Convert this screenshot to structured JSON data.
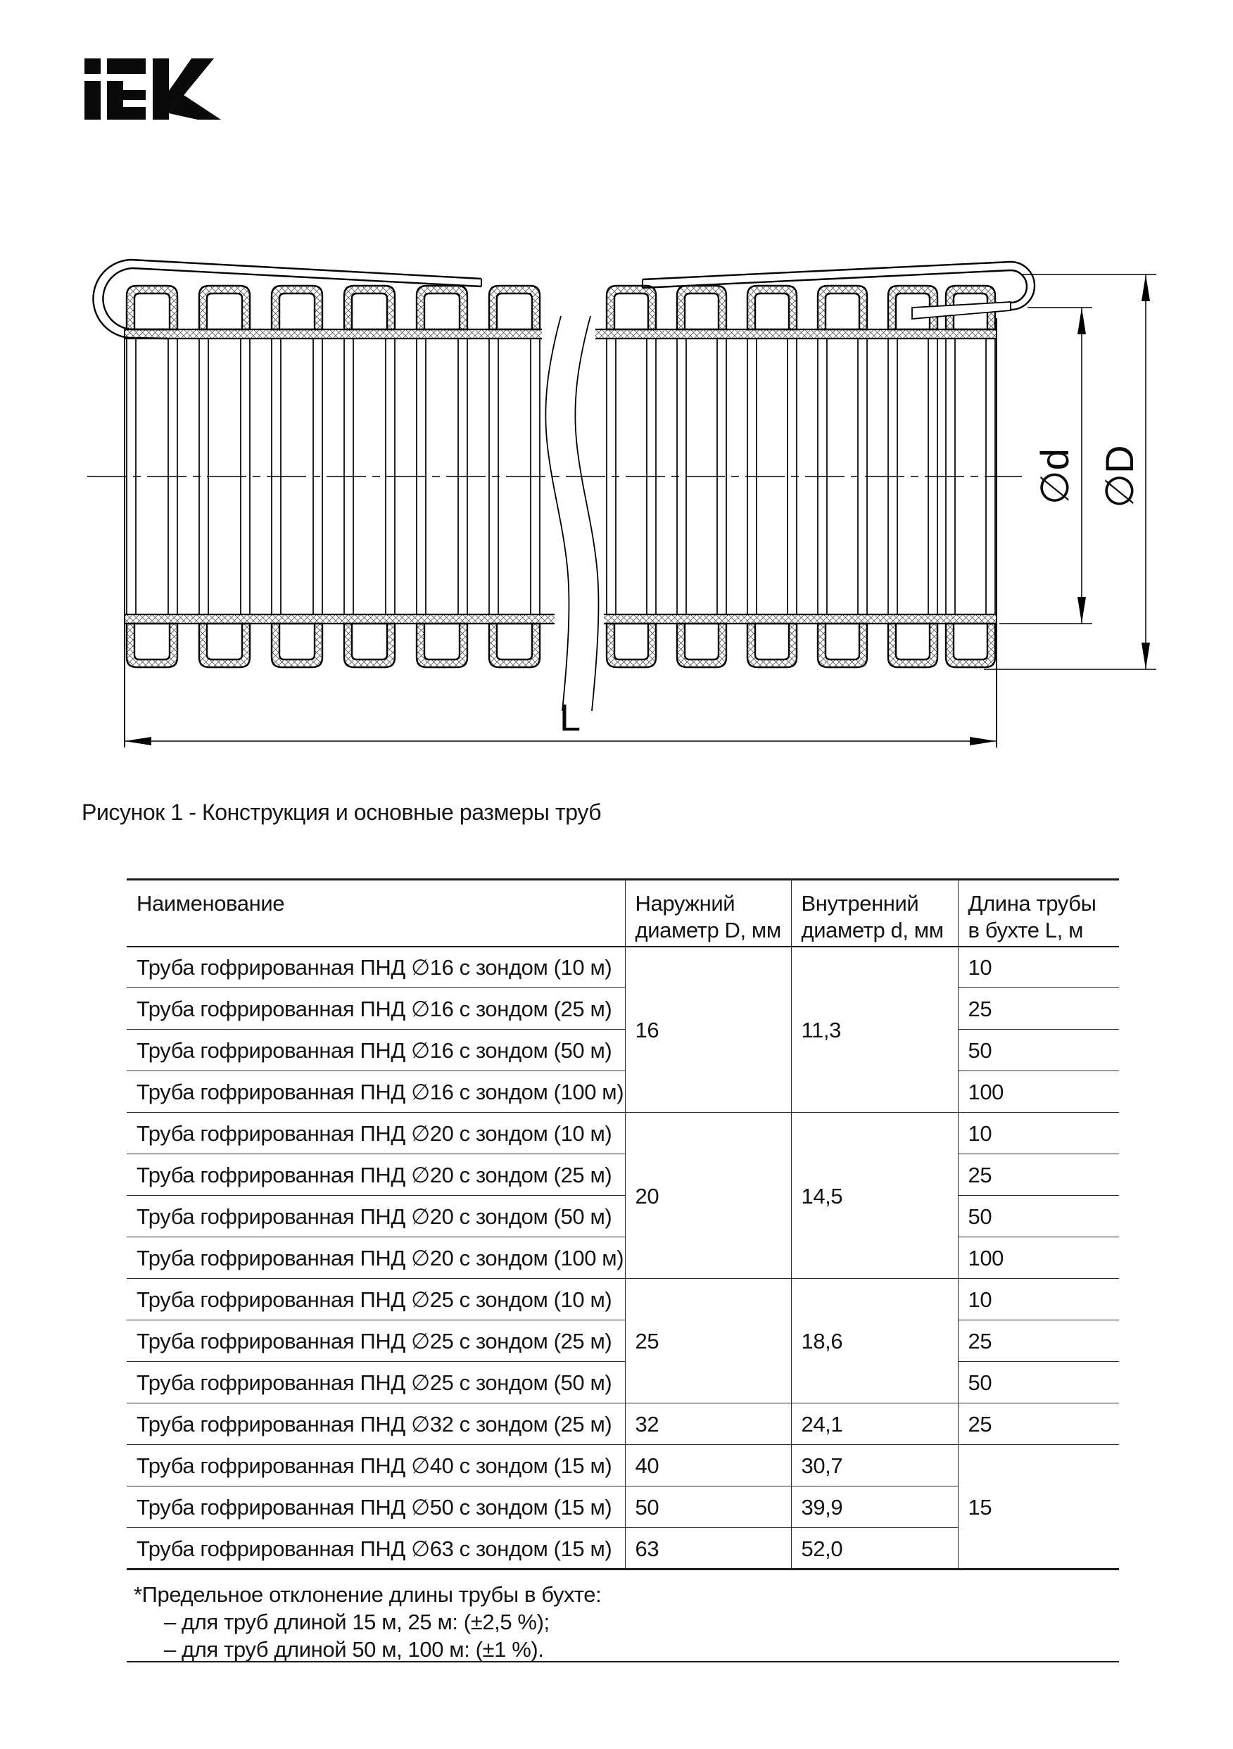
{
  "logo": {
    "brand": "IEK"
  },
  "figure": {
    "caption": "Рисунок 1 - Конструкция и основные размеры труб",
    "dim_inner_label": "∅d",
    "dim_outer_label": "∅D",
    "dim_length_label": "L"
  },
  "table": {
    "headers": {
      "name": "Наименование",
      "outer": [
        "Наружний",
        "диаметр D, мм"
      ],
      "inner": [
        "Внутренний",
        "диаметр d, мм"
      ],
      "length": [
        "Длина трубы",
        "в бухте L, м"
      ]
    },
    "rows": [
      {
        "name": "Труба гофрированная ПНД ∅16 с зондом (10 м)",
        "D": "16",
        "d": "11,3",
        "L": "10"
      },
      {
        "name": "Труба гофрированная ПНД ∅16 с зондом (25 м)",
        "L": "25"
      },
      {
        "name": "Труба гофрированная ПНД ∅16 с зондом (50 м)",
        "L": "50"
      },
      {
        "name": "Труба гофрированная ПНД ∅16 с зондом (100 м)",
        "L": "100"
      },
      {
        "name": "Труба гофрированная ПНД ∅20 с зондом (10 м)",
        "D": "20",
        "d": "14,5",
        "L": "10"
      },
      {
        "name": "Труба гофрированная ПНД ∅20 с зондом (25 м)",
        "L": "25"
      },
      {
        "name": "Труба гофрированная ПНД ∅20 с зондом (50 м)",
        "L": "50"
      },
      {
        "name": "Труба гофрированная ПНД ∅20 с зондом (100 м)",
        "L": "100"
      },
      {
        "name": "Труба гофрированная ПНД ∅25 с зондом (10 м)",
        "D": "25",
        "d": "18,6",
        "L": "10"
      },
      {
        "name": "Труба гофрированная ПНД ∅25 с зондом (25 м)",
        "L": "25"
      },
      {
        "name": "Труба гофрированная ПНД ∅25 с зондом (50 м)",
        "L": "50"
      },
      {
        "name": "Труба гофрированная ПНД ∅32 с зондом (25 м)",
        "D": "32",
        "d": "24,1",
        "L": "25"
      },
      {
        "name": "Труба гофрированная ПНД ∅40 с зондом (15 м)",
        "D": "40",
        "d": "30,7",
        "L": "15"
      },
      {
        "name": "Труба гофрированная ПНД ∅50 с зондом (15 м)",
        "D": "50",
        "d": "39,9"
      },
      {
        "name": "Труба гофрированная ПНД ∅63 с зондом (15 м)",
        "D": "63",
        "d": "52,0"
      }
    ]
  },
  "footnote": {
    "line1": "*Предельное отклонение длины трубы в бухте:",
    "line2": "– для труб длиной 15 м, 25 м: (±2,5 %);",
    "line3": "– для труб длиной 50 м, 100 м: (±1 %)."
  }
}
